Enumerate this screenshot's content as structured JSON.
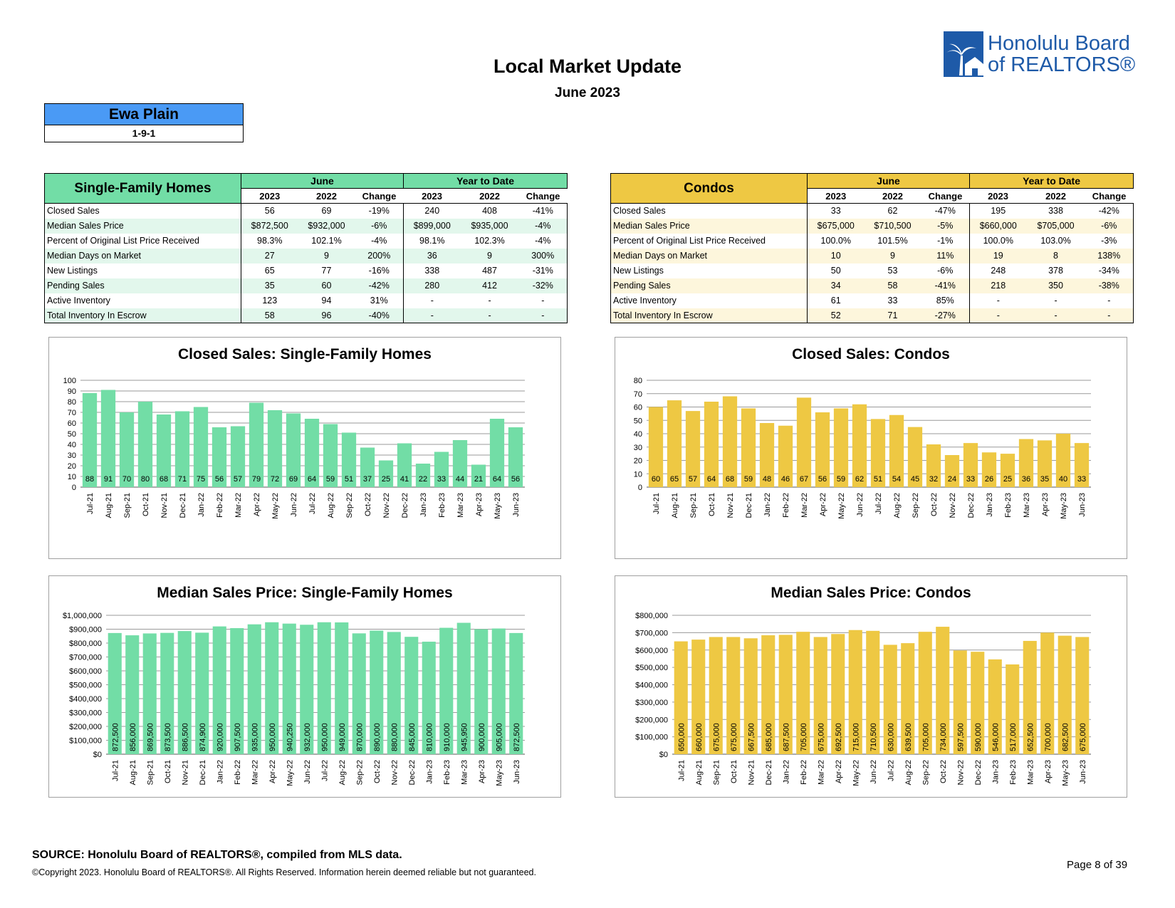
{
  "header": {
    "title": "Local Market Update",
    "subtitle": "June 2023",
    "logo_line1": "Honolulu Board",
    "logo_line2": "of REALTORS®"
  },
  "area": {
    "name": "Ewa Plain",
    "code": "1-9-1"
  },
  "colors": {
    "sfh": "#72dda6",
    "sfh_alt": "#e2f7ec",
    "condo": "#eec843",
    "condo_alt": "#fdf6dc",
    "area": "#4a9af5",
    "logo": "#1e5aa8"
  },
  "sfh_table": {
    "title": "Single-Family Homes",
    "group1": "June",
    "group2": "Year to Date",
    "cols": [
      "2023",
      "2022",
      "Change",
      "2023",
      "2022",
      "Change"
    ],
    "rows": [
      {
        "label": "Closed Sales",
        "values": [
          "56",
          "69",
          "-19%",
          "240",
          "408",
          "-41%"
        ]
      },
      {
        "label": "Median Sales Price",
        "values": [
          "$872,500",
          "$932,000",
          "-6%",
          "$899,000",
          "$935,000",
          "-4%"
        ]
      },
      {
        "label": "Percent of Original List Price Received",
        "values": [
          "98.3%",
          "102.1%",
          "-4%",
          "98.1%",
          "102.3%",
          "-4%"
        ]
      },
      {
        "label": "Median Days on Market",
        "values": [
          "27",
          "9",
          "200%",
          "36",
          "9",
          "300%"
        ]
      },
      {
        "label": "New Listings",
        "values": [
          "65",
          "77",
          "-16%",
          "338",
          "487",
          "-31%"
        ]
      },
      {
        "label": "Pending Sales",
        "values": [
          "35",
          "60",
          "-42%",
          "280",
          "412",
          "-32%"
        ]
      },
      {
        "label": "Active Inventory",
        "values": [
          "123",
          "94",
          "31%",
          "-",
          "-",
          "-"
        ]
      },
      {
        "label": "Total Inventory In Escrow",
        "values": [
          "58",
          "96",
          "-40%",
          "-",
          "-",
          "-"
        ]
      }
    ]
  },
  "condo_table": {
    "title": "Condos",
    "group1": "June",
    "group2": "Year to Date",
    "cols": [
      "2023",
      "2022",
      "Change",
      "2023",
      "2022",
      "Change"
    ],
    "rows": [
      {
        "label": "Closed Sales",
        "values": [
          "33",
          "62",
          "-47%",
          "195",
          "338",
          "-42%"
        ]
      },
      {
        "label": "Median Sales Price",
        "values": [
          "$675,000",
          "$710,500",
          "-5%",
          "$660,000",
          "$705,000",
          "-6%"
        ]
      },
      {
        "label": "Percent of Original List Price Received",
        "values": [
          "100.0%",
          "101.5%",
          "-1%",
          "100.0%",
          "103.0%",
          "-3%"
        ]
      },
      {
        "label": "Median Days on Market",
        "values": [
          "10",
          "9",
          "11%",
          "19",
          "8",
          "138%"
        ]
      },
      {
        "label": "New Listings",
        "values": [
          "50",
          "53",
          "-6%",
          "248",
          "378",
          "-34%"
        ]
      },
      {
        "label": "Pending Sales",
        "values": [
          "34",
          "58",
          "-41%",
          "218",
          "350",
          "-38%"
        ]
      },
      {
        "label": "Active Inventory",
        "values": [
          "61",
          "33",
          "85%",
          "-",
          "-",
          "-"
        ]
      },
      {
        "label": "Total Inventory In Escrow",
        "values": [
          "52",
          "71",
          "-27%",
          "-",
          "-",
          "-"
        ]
      }
    ]
  },
  "chart_data": [
    {
      "id": "sfh-closed",
      "type": "bar",
      "title": "Closed Sales: Single-Family Homes",
      "color": "#72dda6",
      "categories": [
        "Jul-21",
        "Aug-21",
        "Sep-21",
        "Oct-21",
        "Nov-21",
        "Dec-21",
        "Jan-22",
        "Feb-22",
        "Mar-22",
        "Apr-22",
        "May-22",
        "Jun-22",
        "Jul-22",
        "Aug-22",
        "Sep-22",
        "Oct-22",
        "Nov-22",
        "Dec-22",
        "Jan-23",
        "Feb-23",
        "Mar-23",
        "Apr-23",
        "May-23",
        "Jun-23"
      ],
      "values": [
        88,
        91,
        70,
        80,
        68,
        71,
        75,
        56,
        57,
        79,
        72,
        69,
        64,
        59,
        51,
        37,
        25,
        41,
        22,
        33,
        44,
        21,
        64,
        56
      ],
      "ylim": [
        0,
        100
      ],
      "yticks": [
        "0",
        "10",
        "20",
        "30",
        "40",
        "50",
        "60",
        "70",
        "80",
        "90",
        "100"
      ]
    },
    {
      "id": "condo-closed",
      "type": "bar",
      "title": "Closed Sales: Condos",
      "color": "#eec843",
      "categories": [
        "Jul-21",
        "Aug-21",
        "Sep-21",
        "Oct-21",
        "Nov-21",
        "Dec-21",
        "Jan-22",
        "Feb-22",
        "Mar-22",
        "Apr-22",
        "May-22",
        "Jun-22",
        "Jul-22",
        "Aug-22",
        "Sep-22",
        "Oct-22",
        "Nov-22",
        "Dec-22",
        "Jan-23",
        "Feb-23",
        "Mar-23",
        "Apr-23",
        "May-23",
        "Jun-23"
      ],
      "values": [
        60,
        65,
        57,
        64,
        68,
        59,
        48,
        46,
        67,
        56,
        59,
        62,
        51,
        54,
        45,
        32,
        24,
        33,
        26,
        25,
        36,
        35,
        40,
        33
      ],
      "ylim": [
        0,
        80
      ],
      "yticks": [
        "0",
        "10",
        "20",
        "30",
        "40",
        "50",
        "60",
        "70",
        "80"
      ]
    },
    {
      "id": "sfh-price",
      "type": "bar",
      "title": "Median Sales Price: Single-Family Homes",
      "color": "#72dda6",
      "categories": [
        "Jul-21",
        "Aug-21",
        "Sep-21",
        "Oct-21",
        "Nov-21",
        "Dec-21",
        "Jan-22",
        "Feb-22",
        "Mar-22",
        "Apr-22",
        "May-22",
        "Jun-22",
        "Jul-22",
        "Aug-22",
        "Sep-22",
        "Oct-22",
        "Nov-22",
        "Dec-22",
        "Jan-23",
        "Feb-23",
        "Mar-23",
        "Apr-23",
        "May-23",
        "Jun-23"
      ],
      "values": [
        872500,
        856000,
        869500,
        873500,
        886500,
        874900,
        920000,
        907500,
        935000,
        950000,
        940250,
        932000,
        950000,
        949000,
        870000,
        890000,
        880000,
        845000,
        810000,
        910000,
        945950,
        900000,
        905000,
        872500
      ],
      "labels": [
        "872,500",
        "856,000",
        "869,500",
        "873,500",
        "886,500",
        "874,900",
        "920,000",
        "907,500",
        "935,000",
        "950,000",
        "940,250",
        "932,000",
        "950,000",
        "949,000",
        "870,000",
        "890,000",
        "880,000",
        "845,000",
        "810,000",
        "910,000",
        "945,950",
        "900,000",
        "905,000",
        "872,500"
      ],
      "ylim": [
        0,
        1000000
      ],
      "yticks": [
        "$0",
        "$100,000",
        "$200,000",
        "$300,000",
        "$400,000",
        "$500,000",
        "$600,000",
        "$700,000",
        "$800,000",
        "$900,000",
        "$1,000,000"
      ]
    },
    {
      "id": "condo-price",
      "type": "bar",
      "title": "Median Sales Price: Condos",
      "color": "#eec843",
      "categories": [
        "Jul-21",
        "Aug-21",
        "Sep-21",
        "Oct-21",
        "Nov-21",
        "Dec-21",
        "Jan-22",
        "Feb-22",
        "Mar-22",
        "Apr-22",
        "May-22",
        "Jun-22",
        "Jul-22",
        "Aug-22",
        "Sep-22",
        "Oct-22",
        "Nov-22",
        "Dec-22",
        "Jan-23",
        "Feb-23",
        "Mar-23",
        "Apr-23",
        "May-23",
        "Jun-23"
      ],
      "values": [
        650000,
        660000,
        675000,
        675000,
        667500,
        685000,
        687500,
        705000,
        675000,
        692500,
        715000,
        710500,
        630000,
        639500,
        705000,
        734000,
        597500,
        590000,
        546000,
        517000,
        652500,
        700000,
        682500,
        675000
      ],
      "labels": [
        "650,000",
        "660,000",
        "675,000",
        "675,000",
        "667,500",
        "685,000",
        "687,500",
        "705,000",
        "675,000",
        "692,500",
        "715,000",
        "710,500",
        "630,000",
        "639,500",
        "705,000",
        "734,000",
        "597,500",
        "590,000",
        "546,000",
        "517,000",
        "652,500",
        "700,000",
        "682,500",
        "675,000"
      ],
      "ylim": [
        0,
        800000
      ],
      "yticks": [
        "$0",
        "$100,000",
        "$200,000",
        "$300,000",
        "$400,000",
        "$500,000",
        "$600,000",
        "$700,000",
        "$800,000"
      ]
    }
  ],
  "footer": {
    "source": "SOURCE: Honolulu Board of REALTORS®, compiled from MLS data.",
    "copyright": "©Copyright 2023. Honolulu Board of REALTORS®. All Rights Reserved. Information herein deemed reliable but not guaranteed.",
    "page": "Page 8 of 39"
  }
}
